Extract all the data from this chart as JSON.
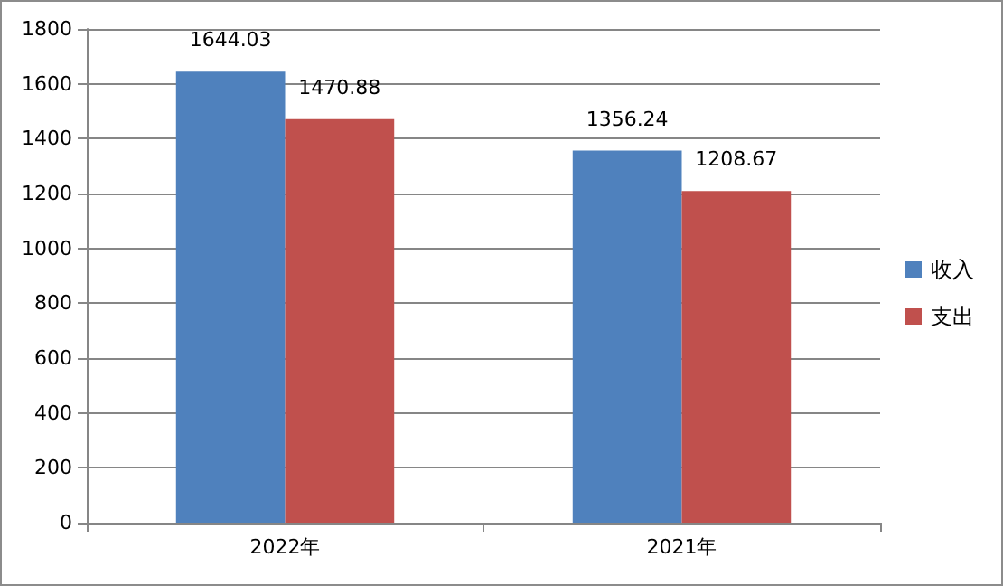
{
  "chart_data": {
    "type": "bar",
    "categories": [
      "2022年",
      "2021年"
    ],
    "series": [
      {
        "name": "收入",
        "color": "#4f81bd",
        "values": [
          1644.03,
          1356.24
        ]
      },
      {
        "name": "支出",
        "color": "#c0504d",
        "values": [
          1470.88,
          1208.67
        ]
      }
    ],
    "ylim": [
      0,
      1800
    ],
    "yticks": [
      0,
      200,
      400,
      600,
      800,
      1000,
      1200,
      1400,
      1600,
      1800
    ],
    "grid": "y",
    "legend": "right",
    "data_labels": true
  }
}
